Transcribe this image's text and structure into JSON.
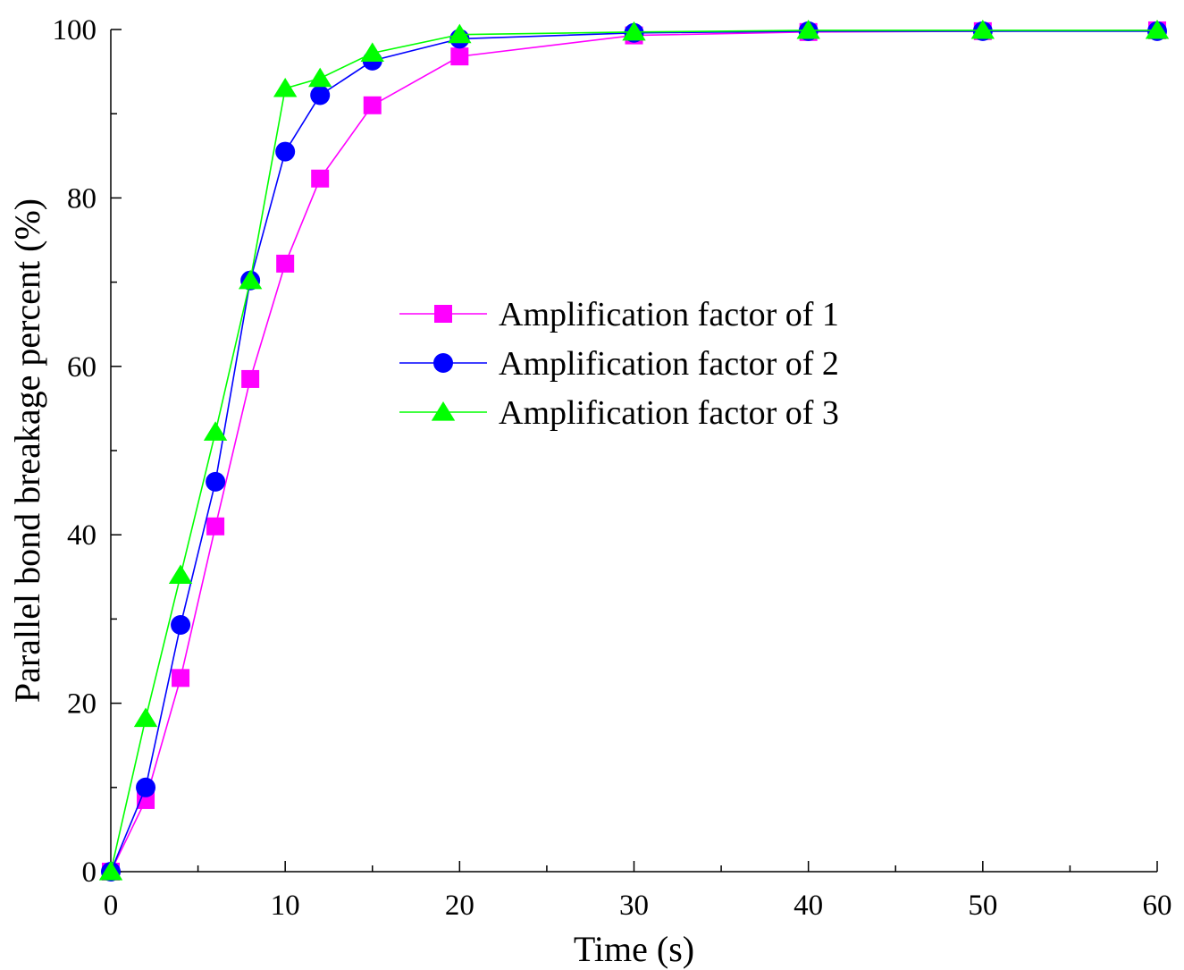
{
  "chart_data": {
    "type": "line",
    "title": "",
    "xlabel": "Time (s)",
    "ylabel": "Parallel bond breakage percent (%)",
    "xlim": [
      0,
      60
    ],
    "ylim": [
      0,
      100
    ],
    "xticks": [
      0,
      10,
      20,
      30,
      40,
      50,
      60
    ],
    "yticks": [
      0,
      20,
      40,
      60,
      80,
      100
    ],
    "grid": false,
    "legend_position": "center",
    "series": [
      {
        "name": "Amplification factor of 1",
        "color": "#ff00ff",
        "marker": "square",
        "x": [
          0,
          2,
          4,
          6,
          8,
          10,
          12,
          15,
          20,
          30,
          40,
          50,
          60
        ],
        "y": [
          0,
          8.5,
          23,
          41,
          58.5,
          72.2,
          82.3,
          91,
          96.8,
          99.3,
          99.7,
          99.8,
          99.9
        ]
      },
      {
        "name": "Amplification factor of 2",
        "color": "#0000ff",
        "marker": "circle",
        "x": [
          0,
          2,
          4,
          6,
          8,
          10,
          12,
          15,
          20,
          30,
          40,
          50,
          60
        ],
        "y": [
          0,
          10,
          29.3,
          46.3,
          70.2,
          85.5,
          92.2,
          96.3,
          98.9,
          99.6,
          99.8,
          99.8,
          99.8
        ]
      },
      {
        "name": "Amplification factor of 3",
        "color": "#00ff00",
        "marker": "triangle",
        "x": [
          0,
          2,
          4,
          6,
          8,
          10,
          12,
          15,
          20,
          30,
          40,
          50,
          60
        ],
        "y": [
          0,
          18.2,
          35.2,
          52.2,
          70.2,
          93,
          94.2,
          97.2,
          99.4,
          99.7,
          99.9,
          99.9,
          99.9
        ]
      }
    ]
  }
}
